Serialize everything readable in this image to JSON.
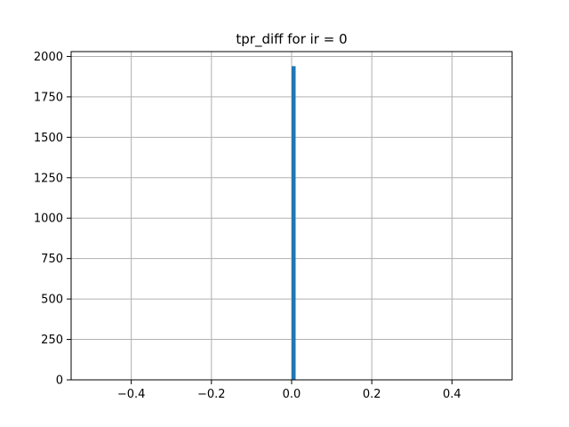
{
  "chart_data": {
    "type": "bar",
    "title": "tpr_diff for ir = 0",
    "xlabel": "",
    "ylabel": "",
    "xlim": [
      -0.55,
      0.55
    ],
    "ylim": [
      0,
      2030
    ],
    "grid": true,
    "x_ticks": [
      -0.4,
      -0.2,
      0.0,
      0.2,
      0.4
    ],
    "x_tick_labels": [
      "−0.4",
      "−0.2",
      "0.0",
      "0.2",
      "0.4"
    ],
    "y_ticks": [
      0,
      250,
      500,
      750,
      1000,
      1250,
      1500,
      1750,
      2000
    ],
    "y_tick_labels": [
      "0",
      "250",
      "500",
      "750",
      "1000",
      "1250",
      "1500",
      "1750",
      "2000"
    ],
    "bins": [
      {
        "x_start": 0.0,
        "x_end": 0.01,
        "value": 1940
      }
    ],
    "colors": {
      "bar": "#1f77b4",
      "grid": "#b0b0b0",
      "axes": "#000000"
    }
  }
}
